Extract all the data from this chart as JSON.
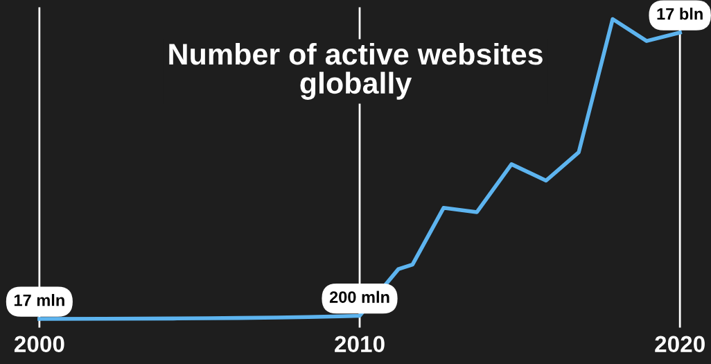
{
  "chart_data": {
    "type": "line",
    "title": "Number of active websites\nglobally",
    "x": [
      2000,
      2002.01,
      2004.18,
      2005.26,
      2006.23,
      2007.42,
      2008.4,
      2009.37,
      2010,
      2011.21,
      2011.65,
      2012.62,
      2013.66,
      2014.74,
      2015.82,
      2016.84,
      2017.9,
      2018.96,
      2020
    ],
    "series": [
      {
        "color": "#5db4ef",
        "values": [
          17,
          25,
          40,
          55,
          70,
          100,
          130,
          170,
          200,
          2970,
          3240,
          6600,
          6350,
          9190,
          8220,
          9900,
          17800,
          16500,
          17000
        ],
        "value_labels": [
          "17 mln",
          null,
          null,
          null,
          null,
          null,
          null,
          null,
          "200 mln",
          null,
          null,
          null,
          null,
          null,
          null,
          null,
          null,
          null,
          null
        ]
      }
    ],
    "annotations": [
      {
        "text": "17 bln",
        "x": 2020,
        "y": 17000
      }
    ],
    "xlim": [
      1998.77,
      2020.97
    ],
    "xticks": [
      2000,
      2010,
      2020
    ],
    "ylim": [
      -500,
      18500
    ],
    "grid": "x",
    "tick_labels": "x",
    "marker": "none",
    "line_style": "solid"
  }
}
